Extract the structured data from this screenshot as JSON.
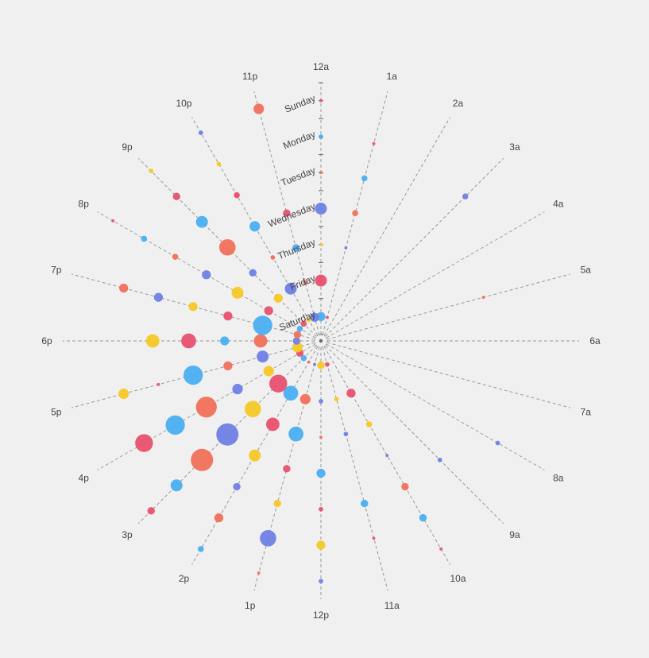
{
  "chart_data": {
    "type": "scatter",
    "subtype": "polar-bubble",
    "title": "",
    "angle_axis": {
      "labels": [
        "12a",
        "1a",
        "2a",
        "3a",
        "4a",
        "5a",
        "6a",
        "7a",
        "8a",
        "9a",
        "10a",
        "11a",
        "12p",
        "1p",
        "2p",
        "3p",
        "4p",
        "5p",
        "6p",
        "7p",
        "8p",
        "9p",
        "10p",
        "11p"
      ]
    },
    "radius_axis": {
      "labels": [
        "Saturday",
        "Friday",
        "Thursday",
        "Wednesday",
        "Tuesday",
        "Monday",
        "Sunday"
      ]
    },
    "size_scale": "value",
    "colors": [
      "#4aaef0",
      "#e8506e",
      "#f5c826",
      "#6f7fe4",
      "#f0705a"
    ],
    "points": [
      {
        "day": 0,
        "hour": 0,
        "value": 5
      },
      {
        "day": 0,
        "hour": 1,
        "value": 1
      },
      {
        "day": 0,
        "hour": 2,
        "value": 0
      },
      {
        "day": 0,
        "hour": 3,
        "value": 0
      },
      {
        "day": 0,
        "hour": 4,
        "value": 0
      },
      {
        "day": 0,
        "hour": 5,
        "value": 0
      },
      {
        "day": 0,
        "hour": 6,
        "value": 0
      },
      {
        "day": 0,
        "hour": 7,
        "value": 0
      },
      {
        "day": 0,
        "hour": 8,
        "value": 0
      },
      {
        "day": 0,
        "hour": 9,
        "value": 0
      },
      {
        "day": 0,
        "hour": 10,
        "value": 0
      },
      {
        "day": 0,
        "hour": 11,
        "value": 2
      },
      {
        "day": 0,
        "hour": 12,
        "value": 4
      },
      {
        "day": 0,
        "hour": 13,
        "value": 1
      },
      {
        "day": 0,
        "hour": 14,
        "value": 1
      },
      {
        "day": 0,
        "hour": 15,
        "value": 3
      },
      {
        "day": 0,
        "hour": 16,
        "value": 4
      },
      {
        "day": 0,
        "hour": 17,
        "value": 6
      },
      {
        "day": 0,
        "hour": 18,
        "value": 4
      },
      {
        "day": 0,
        "hour": 19,
        "value": 4
      },
      {
        "day": 0,
        "hour": 20,
        "value": 3
      },
      {
        "day": 0,
        "hour": 21,
        "value": 3
      },
      {
        "day": 0,
        "hour": 22,
        "value": 2
      },
      {
        "day": 0,
        "hour": 23,
        "value": 5
      },
      {
        "day": 1,
        "hour": 0,
        "value": 7
      },
      {
        "day": 1,
        "hour": 1,
        "value": 0
      },
      {
        "day": 1,
        "hour": 2,
        "value": 0
      },
      {
        "day": 1,
        "hour": 3,
        "value": 0
      },
      {
        "day": 1,
        "hour": 4,
        "value": 0
      },
      {
        "day": 1,
        "hour": 5,
        "value": 0
      },
      {
        "day": 1,
        "hour": 6,
        "value": 0
      },
      {
        "day": 1,
        "hour": 7,
        "value": 0
      },
      {
        "day": 1,
        "hour": 8,
        "value": 0
      },
      {
        "day": 1,
        "hour": 9,
        "value": 0
      },
      {
        "day": 1,
        "hour": 10,
        "value": 5
      },
      {
        "day": 1,
        "hour": 11,
        "value": 2
      },
      {
        "day": 1,
        "hour": 12,
        "value": 2
      },
      {
        "day": 1,
        "hour": 13,
        "value": 6
      },
      {
        "day": 1,
        "hour": 14,
        "value": 9
      },
      {
        "day": 1,
        "hour": 15,
        "value": 11
      },
      {
        "day": 1,
        "hour": 16,
        "value": 6
      },
      {
        "day": 1,
        "hour": 17,
        "value": 7
      },
      {
        "day": 1,
        "hour": 18,
        "value": 8
      },
      {
        "day": 1,
        "hour": 19,
        "value": 12
      },
      {
        "day": 1,
        "hour": 20,
        "value": 5
      },
      {
        "day": 1,
        "hour": 21,
        "value": 5
      },
      {
        "day": 1,
        "hour": 22,
        "value": 7
      },
      {
        "day": 1,
        "hour": 23,
        "value": 2
      },
      {
        "day": 2,
        "hour": 0,
        "value": 1
      },
      {
        "day": 2,
        "hour": 1,
        "value": 1
      },
      {
        "day": 2,
        "hour": 2,
        "value": 0
      },
      {
        "day": 2,
        "hour": 3,
        "value": 0
      },
      {
        "day": 2,
        "hour": 4,
        "value": 0
      },
      {
        "day": 2,
        "hour": 5,
        "value": 0
      },
      {
        "day": 2,
        "hour": 6,
        "value": 0
      },
      {
        "day": 2,
        "hour": 7,
        "value": 0
      },
      {
        "day": 2,
        "hour": 8,
        "value": 0
      },
      {
        "day": 2,
        "hour": 9,
        "value": 0
      },
      {
        "day": 2,
        "hour": 10,
        "value": 3
      },
      {
        "day": 2,
        "hour": 11,
        "value": 2
      },
      {
        "day": 2,
        "hour": 12,
        "value": 1
      },
      {
        "day": 2,
        "hour": 13,
        "value": 9
      },
      {
        "day": 2,
        "hour": 14,
        "value": 8
      },
      {
        "day": 2,
        "hour": 15,
        "value": 10
      },
      {
        "day": 2,
        "hour": 16,
        "value": 6
      },
      {
        "day": 2,
        "hour": 17,
        "value": 5
      },
      {
        "day": 2,
        "hour": 18,
        "value": 5
      },
      {
        "day": 2,
        "hour": 19,
        "value": 5
      },
      {
        "day": 2,
        "hour": 20,
        "value": 7
      },
      {
        "day": 2,
        "hour": 21,
        "value": 4
      },
      {
        "day": 2,
        "hour": 22,
        "value": 2
      },
      {
        "day": 2,
        "hour": 23,
        "value": 4
      },
      {
        "day": 3,
        "hour": 0,
        "value": 7
      },
      {
        "day": 3,
        "hour": 1,
        "value": 3
      },
      {
        "day": 3,
        "hour": 2,
        "value": 0
      },
      {
        "day": 3,
        "hour": 3,
        "value": 0
      },
      {
        "day": 3,
        "hour": 4,
        "value": 0
      },
      {
        "day": 3,
        "hour": 5,
        "value": 0
      },
      {
        "day": 3,
        "hour": 6,
        "value": 0
      },
      {
        "day": 3,
        "hour": 7,
        "value": 0
      },
      {
        "day": 3,
        "hour": 8,
        "value": 0
      },
      {
        "day": 3,
        "hour": 9,
        "value": 0
      },
      {
        "day": 3,
        "hour": 10,
        "value": 1
      },
      {
        "day": 3,
        "hour": 11,
        "value": 0
      },
      {
        "day": 3,
        "hour": 12,
        "value": 5
      },
      {
        "day": 3,
        "hour": 13,
        "value": 4
      },
      {
        "day": 3,
        "hour": 14,
        "value": 7
      },
      {
        "day": 3,
        "hour": 15,
        "value": 14
      },
      {
        "day": 3,
        "hour": 16,
        "value": 13
      },
      {
        "day": 3,
        "hour": 17,
        "value": 12
      },
      {
        "day": 3,
        "hour": 18,
        "value": 9
      },
      {
        "day": 3,
        "hour": 19,
        "value": 5
      },
      {
        "day": 3,
        "hour": 20,
        "value": 5
      },
      {
        "day": 3,
        "hour": 21,
        "value": 10
      },
      {
        "day": 3,
        "hour": 22,
        "value": 6
      },
      {
        "day": 3,
        "hour": 23,
        "value": 4
      },
      {
        "day": 4,
        "hour": 0,
        "value": 1
      },
      {
        "day": 4,
        "hour": 1,
        "value": 3
      },
      {
        "day": 4,
        "hour": 2,
        "value": 0
      },
      {
        "day": 4,
        "hour": 3,
        "value": 0
      },
      {
        "day": 4,
        "hour": 4,
        "value": 0
      },
      {
        "day": 4,
        "hour": 5,
        "value": 1
      },
      {
        "day": 4,
        "hour": 6,
        "value": 0
      },
      {
        "day": 4,
        "hour": 7,
        "value": 0
      },
      {
        "day": 4,
        "hour": 8,
        "value": 0
      },
      {
        "day": 4,
        "hour": 9,
        "value": 2
      },
      {
        "day": 4,
        "hour": 10,
        "value": 4
      },
      {
        "day": 4,
        "hour": 11,
        "value": 4
      },
      {
        "day": 4,
        "hour": 12,
        "value": 2
      },
      {
        "day": 4,
        "hour": 13,
        "value": 4
      },
      {
        "day": 4,
        "hour": 14,
        "value": 4
      },
      {
        "day": 4,
        "hour": 15,
        "value": 14
      },
      {
        "day": 4,
        "hour": 16,
        "value": 12
      },
      {
        "day": 4,
        "hour": 17,
        "value": 1
      },
      {
        "day": 4,
        "hour": 18,
        "value": 8
      },
      {
        "day": 4,
        "hour": 19,
        "value": 5
      },
      {
        "day": 4,
        "hour": 20,
        "value": 3
      },
      {
        "day": 4,
        "hour": 21,
        "value": 7
      },
      {
        "day": 4,
        "hour": 22,
        "value": 3
      },
      {
        "day": 4,
        "hour": 23,
        "value": 0
      },
      {
        "day": 5,
        "hour": 0,
        "value": 2
      },
      {
        "day": 5,
        "hour": 1,
        "value": 1
      },
      {
        "day": 5,
        "hour": 2,
        "value": 0
      },
      {
        "day": 5,
        "hour": 3,
        "value": 3
      },
      {
        "day": 5,
        "hour": 4,
        "value": 0
      },
      {
        "day": 5,
        "hour": 5,
        "value": 0
      },
      {
        "day": 5,
        "hour": 6,
        "value": 0
      },
      {
        "day": 5,
        "hour": 7,
        "value": 0
      },
      {
        "day": 5,
        "hour": 8,
        "value": 2
      },
      {
        "day": 5,
        "hour": 9,
        "value": 0
      },
      {
        "day": 5,
        "hour": 10,
        "value": 4
      },
      {
        "day": 5,
        "hour": 11,
        "value": 1
      },
      {
        "day": 5,
        "hour": 12,
        "value": 5
      },
      {
        "day": 5,
        "hour": 13,
        "value": 10
      },
      {
        "day": 5,
        "hour": 14,
        "value": 5
      },
      {
        "day": 5,
        "hour": 15,
        "value": 7
      },
      {
        "day": 5,
        "hour": 16,
        "value": 11
      },
      {
        "day": 5,
        "hour": 17,
        "value": 6
      },
      {
        "day": 5,
        "hour": 18,
        "value": 0
      },
      {
        "day": 5,
        "hour": 19,
        "value": 5
      },
      {
        "day": 5,
        "hour": 20,
        "value": 3
      },
      {
        "day": 5,
        "hour": 21,
        "value": 4
      },
      {
        "day": 5,
        "hour": 22,
        "value": 2
      },
      {
        "day": 5,
        "hour": 23,
        "value": 0
      },
      {
        "day": 6,
        "hour": 0,
        "value": 1
      },
      {
        "day": 6,
        "hour": 1,
        "value": 0
      },
      {
        "day": 6,
        "hour": 2,
        "value": 0
      },
      {
        "day": 6,
        "hour": 3,
        "value": 0
      },
      {
        "day": 6,
        "hour": 4,
        "value": 0
      },
      {
        "day": 6,
        "hour": 5,
        "value": 0
      },
      {
        "day": 6,
        "hour": 6,
        "value": 0
      },
      {
        "day": 6,
        "hour": 7,
        "value": 0
      },
      {
        "day": 6,
        "hour": 8,
        "value": 0
      },
      {
        "day": 6,
        "hour": 9,
        "value": 0
      },
      {
        "day": 6,
        "hour": 10,
        "value": 1
      },
      {
        "day": 6,
        "hour": 11,
        "value": 0
      },
      {
        "day": 6,
        "hour": 12,
        "value": 2
      },
      {
        "day": 6,
        "hour": 13,
        "value": 1
      },
      {
        "day": 6,
        "hour": 14,
        "value": 3
      },
      {
        "day": 6,
        "hour": 15,
        "value": 4
      },
      {
        "day": 6,
        "hour": 16,
        "value": 0
      },
      {
        "day": 6,
        "hour": 17,
        "value": 0
      },
      {
        "day": 6,
        "hour": 18,
        "value": 0
      },
      {
        "day": 6,
        "hour": 19,
        "value": 0
      },
      {
        "day": 6,
        "hour": 20,
        "value": 1
      },
      {
        "day": 6,
        "hour": 21,
        "value": 2
      },
      {
        "day": 6,
        "hour": 22,
        "value": 2
      },
      {
        "day": 6,
        "hour": 23,
        "value": 6
      }
    ]
  }
}
